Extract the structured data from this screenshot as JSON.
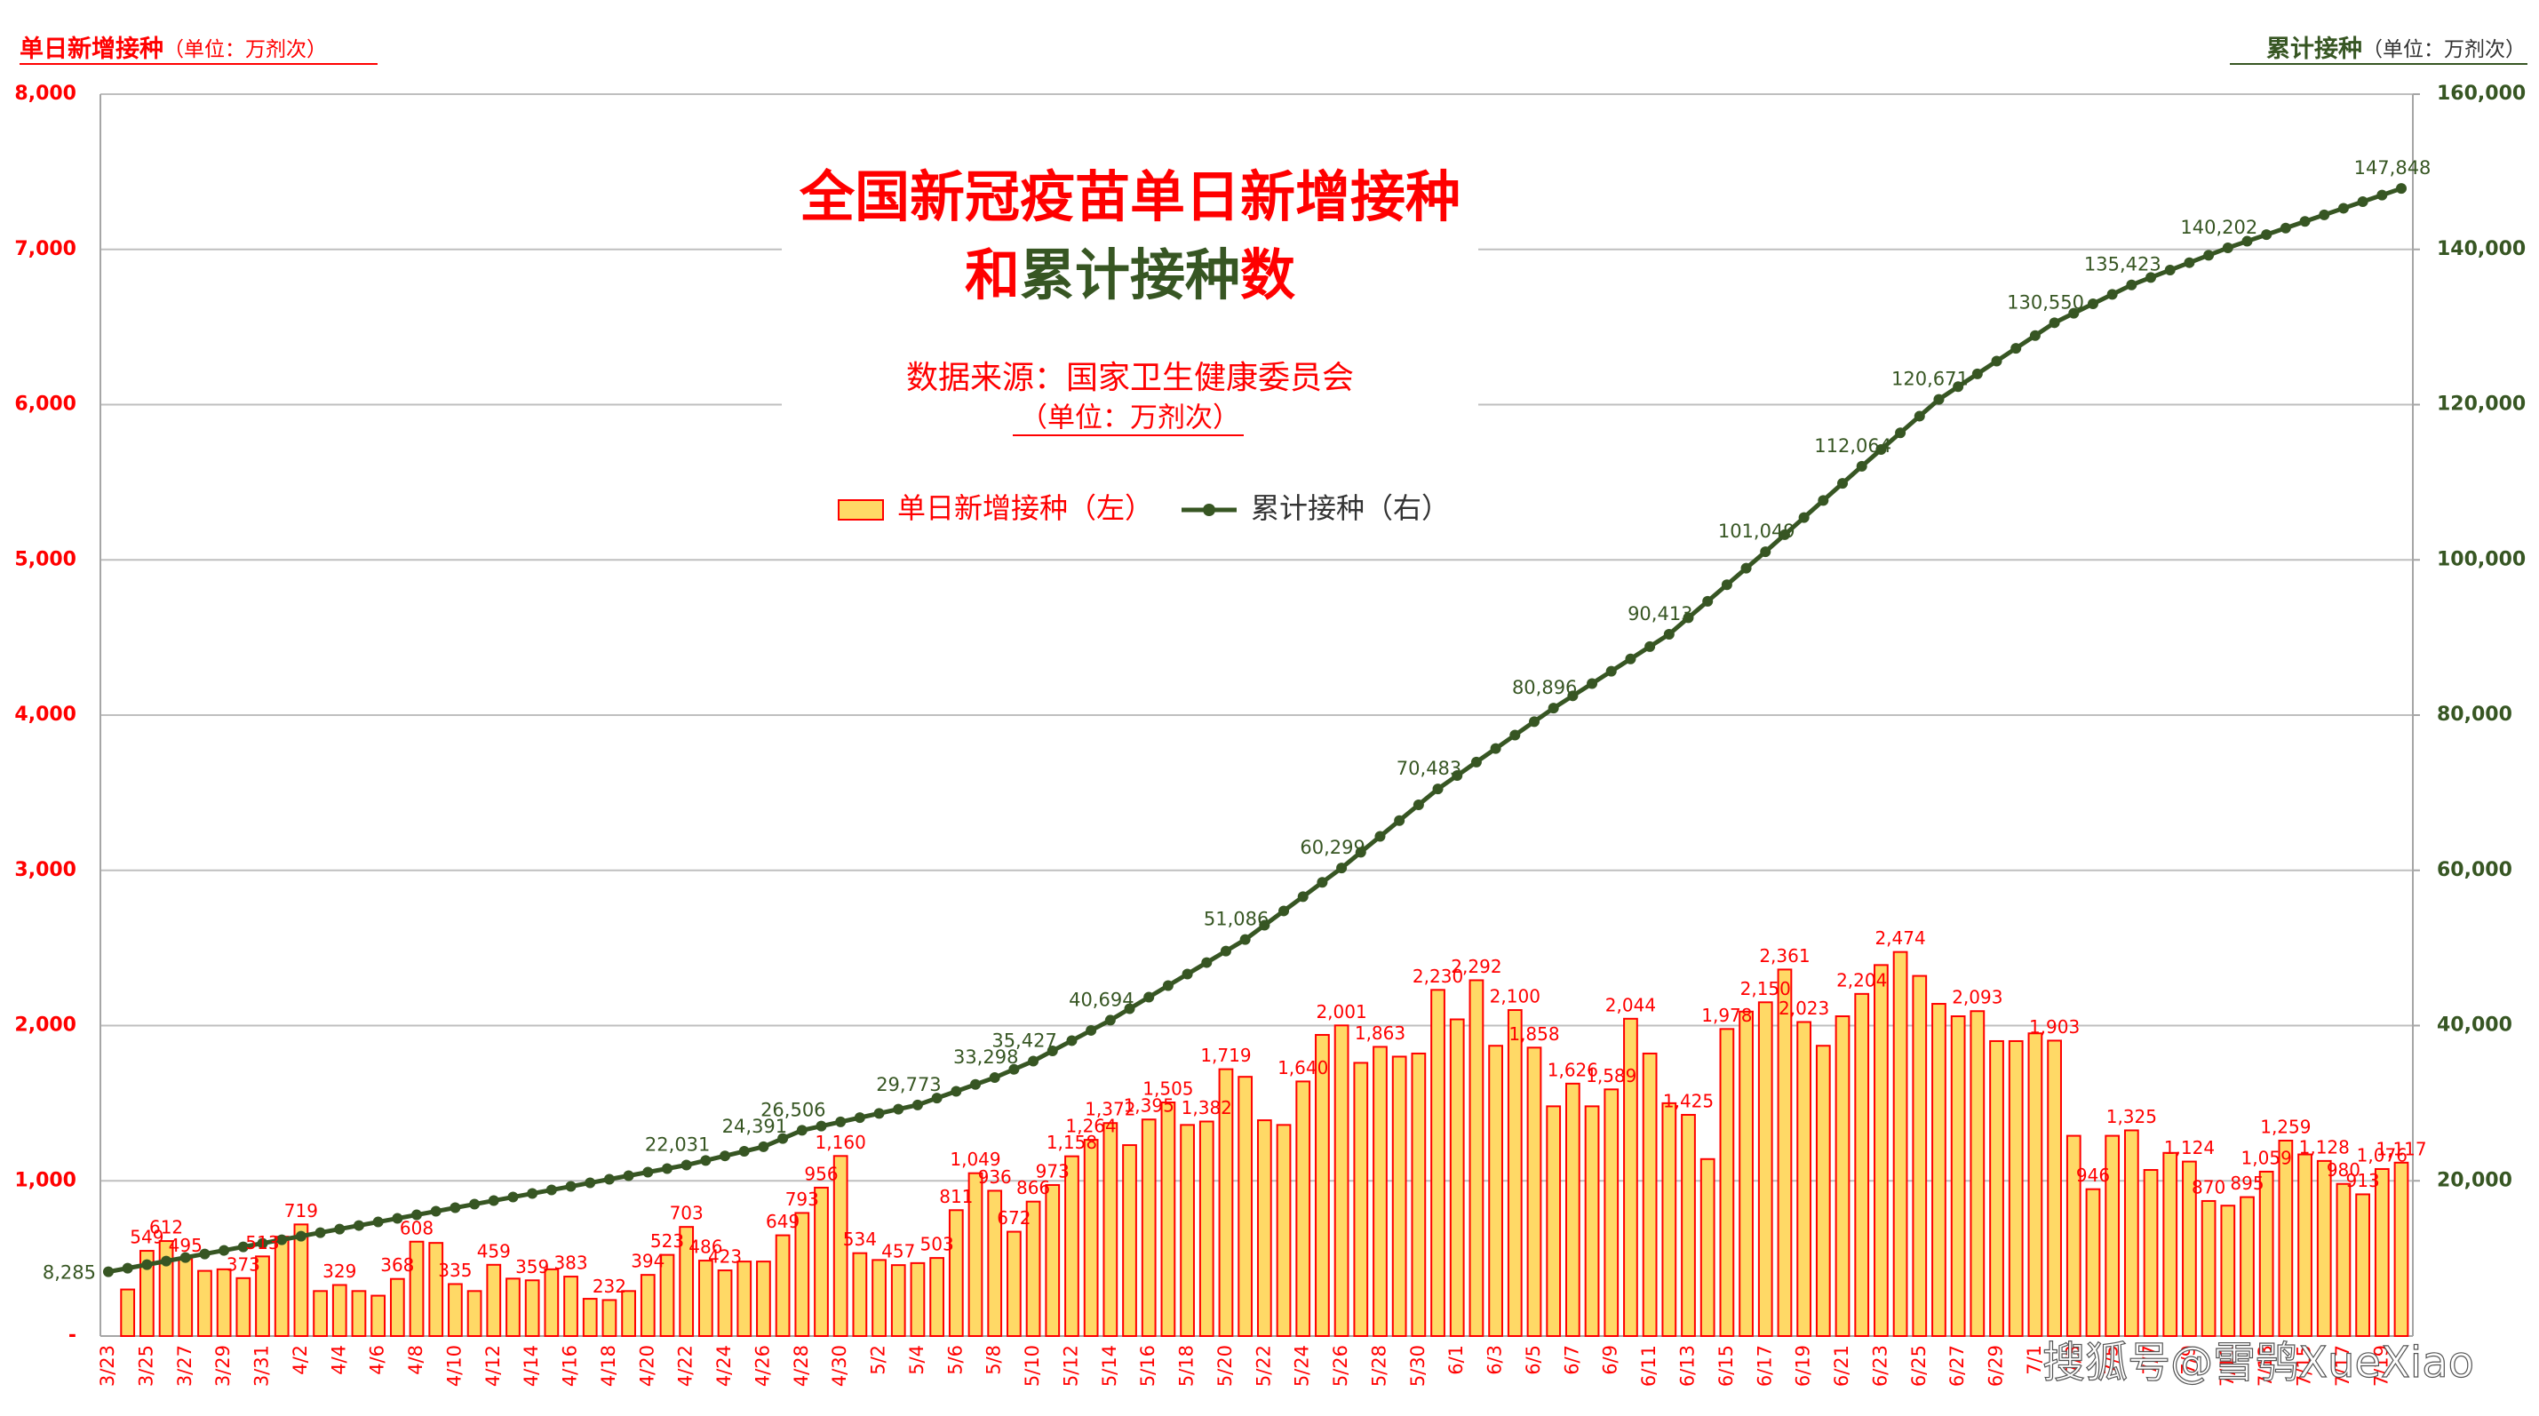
{
  "chart_data": {
    "type": "combo",
    "title": {
      "line1": {
        "text": "全国新冠疫苗单日新增接种",
        "color": "#ff0000"
      },
      "line2": [
        {
          "text": "和",
          "color": "#ff0000"
        },
        {
          "text": "累计接种",
          "color": "#375623"
        },
        {
          "text": "数",
          "color": "#ff0000"
        }
      ]
    },
    "source": "数据来源：国家卫生健康委员会",
    "unit": "（单位：万剂次）",
    "y_label": "单日新增接种",
    "y_unit": "（单位：万剂次）",
    "y2_label": "累计接种",
    "y2_unit": "（单位：万剂次）",
    "categories": [
      "3/23",
      null,
      "3/25",
      null,
      "3/27",
      null,
      "3/29",
      null,
      "3/31",
      null,
      "4/2",
      null,
      "4/4",
      null,
      "4/6",
      null,
      "4/8",
      null,
      "4/10",
      null,
      "4/12",
      null,
      "4/14",
      null,
      "4/16",
      null,
      "4/18",
      null,
      "4/20",
      null,
      "4/22",
      null,
      "4/24",
      null,
      "4/26",
      null,
      "4/28",
      null,
      "4/30",
      null,
      "5/2",
      null,
      "5/4",
      null,
      "5/6",
      null,
      "5/8",
      null,
      "5/10",
      null,
      "5/12",
      null,
      "5/14",
      null,
      "5/16",
      null,
      "5/18",
      null,
      "5/20",
      null,
      "5/22",
      null,
      "5/24",
      null,
      "5/26",
      null,
      "5/28",
      null,
      "5/30",
      null,
      "6/1",
      null,
      "6/3",
      null,
      "6/5",
      null,
      "6/7",
      null,
      "6/9",
      null,
      "6/11",
      null,
      "6/13",
      null,
      "6/15",
      null,
      "6/17",
      null,
      "6/19",
      null,
      "6/21",
      null,
      "6/23",
      null,
      "6/25",
      null,
      "6/27",
      null,
      "6/29",
      null,
      "7/1",
      null,
      "7/3",
      null,
      "7/5",
      null,
      "7/7",
      null,
      "7/9",
      null,
      "7/11",
      null,
      "7/13",
      null,
      "7/15",
      null,
      "7/17",
      null,
      "7/19",
      null
    ],
    "series": [
      {
        "name": "单日新增接种（左）",
        "type": "bar",
        "color": "#ffd966",
        "edge_color": "#ff0000",
        "label_color": "#ff0000",
        "values": [
          null,
          300,
          549,
          612,
          495,
          420,
          430,
          373,
          513,
          640,
          719,
          290,
          329,
          290,
          260,
          368,
          608,
          600,
          335,
          290,
          459,
          370,
          359,
          430,
          383,
          240,
          232,
          290,
          394,
          523,
          703,
          486,
          423,
          480,
          480,
          649,
          793,
          956,
          1160,
          534,
          490,
          457,
          470,
          503,
          811,
          1049,
          936,
          672,
          866,
          973,
          1158,
          1264,
          1372,
          1230,
          1395,
          1505,
          1360,
          1382,
          1719,
          1670,
          1390,
          1360,
          1640,
          1940,
          2001,
          1760,
          1863,
          1800,
          1820,
          2230,
          2040,
          2292,
          1870,
          2100,
          1858,
          1480,
          1626,
          1480,
          1589,
          2044,
          1820,
          1500,
          1425,
          1140,
          1978,
          2090,
          2150,
          2361,
          2023,
          1870,
          2060,
          2204,
          2390,
          2474,
          2320,
          2140,
          2060,
          2093,
          1900,
          1900,
          1950,
          1903,
          1290,
          946,
          1290,
          1325,
          1070,
          1180,
          1124,
          870,
          840,
          895,
          1059,
          1259,
          1170,
          1128,
          980,
          913,
          1076,
          1117
        ],
        "value_labels": [
          null,
          null,
          "549",
          "612",
          "495",
          null,
          null,
          "373",
          "513",
          null,
          "719",
          null,
          "329",
          null,
          null,
          "368",
          "608",
          null,
          "335",
          null,
          "459",
          null,
          "359",
          null,
          "383",
          null,
          "232",
          null,
          "394",
          "523",
          "703",
          "486",
          "423",
          null,
          null,
          "649",
          "793",
          "956",
          "1,160",
          "534",
          null,
          "457",
          null,
          "503",
          "811",
          "1,049",
          "936",
          "672",
          "866",
          "973",
          "1,158",
          "1,264",
          "1,372",
          null,
          "1,395",
          "1,505",
          null,
          "1,382",
          "1,719",
          null,
          null,
          null,
          "1,640",
          null,
          "2,001",
          null,
          "1,863",
          null,
          null,
          "2,230",
          null,
          "2,292",
          null,
          "2,100",
          "1,858",
          null,
          "1,626",
          null,
          "1,589",
          "2,044",
          null,
          null,
          "1,425",
          null,
          "1,978",
          null,
          "2,150",
          "2,361",
          "2,023",
          null,
          null,
          "2,204",
          null,
          "2,474",
          null,
          null,
          null,
          "2,093",
          null,
          null,
          null,
          "1,903",
          null,
          "946",
          null,
          "1,325",
          null,
          null,
          "1,124",
          "870",
          null,
          "895",
          "1,059",
          "1,259",
          null,
          "1,128",
          "980",
          "913",
          "1,076",
          "1,117"
        ]
      },
      {
        "name": "累计接种（右）",
        "type": "line",
        "axis": "y2",
        "color": "#375623",
        "label_color": "#375623",
        "values": [
          8285,
          8743,
          9201,
          9659,
          10118,
          10576,
          11034,
          11492,
          11950,
          12409,
          12867,
          13325,
          13783,
          14241,
          14700,
          15158,
          15616,
          16074,
          16532,
          16991,
          17449,
          17907,
          18365,
          18823,
          19282,
          19740,
          20198,
          20656,
          21114,
          21573,
          22031,
          22621,
          23211,
          23801,
          24391,
          25449,
          26506,
          27051,
          27595,
          28140,
          28684,
          29229,
          29773,
          30654,
          31535,
          32417,
          33298,
          34363,
          35427,
          36744,
          38061,
          39377,
          40694,
          42179,
          43664,
          45148,
          46633,
          48118,
          49601,
          51086,
          52929,
          54771,
          56614,
          58456,
          60299,
          62336,
          64373,
          66410,
          68446,
          70483,
          72219,
          73954,
          75690,
          77425,
          79161,
          80896,
          82482,
          84068,
          85655,
          87241,
          88827,
          90413,
          92540,
          94667,
          96795,
          98922,
          101049,
          103252,
          105455,
          107658,
          109861,
          112064,
          114216,
          116368,
          118519,
          120671,
          122318,
          123964,
          125611,
          127257,
          128904,
          130550,
          131768,
          132986,
          134205,
          135423,
          136379,
          137335,
          138290,
          139246,
          140202,
          141052,
          141901,
          142751,
          143600,
          144450,
          145300,
          146149,
          146999,
          147848
        ],
        "value_labels": [
          "8,285",
          null,
          null,
          null,
          null,
          null,
          null,
          null,
          null,
          null,
          null,
          null,
          null,
          null,
          null,
          null,
          null,
          null,
          null,
          null,
          null,
          null,
          null,
          null,
          null,
          null,
          null,
          null,
          null,
          null,
          "22,031",
          null,
          null,
          null,
          "24,391",
          null,
          "26,506",
          null,
          null,
          null,
          null,
          null,
          "29,773",
          null,
          null,
          null,
          "33,298",
          null,
          "35,427",
          null,
          null,
          null,
          "40,694",
          null,
          null,
          null,
          null,
          null,
          null,
          "51,086",
          null,
          null,
          null,
          null,
          "60,299",
          null,
          null,
          null,
          null,
          "70,483",
          null,
          null,
          null,
          null,
          null,
          "80,896",
          null,
          null,
          null,
          null,
          null,
          "90,413",
          null,
          null,
          null,
          null,
          "101,049",
          null,
          null,
          null,
          null,
          "112,064",
          null,
          null,
          null,
          "120,671",
          null,
          null,
          null,
          null,
          null,
          "130,550",
          null,
          null,
          null,
          "135,423",
          null,
          null,
          null,
          null,
          "140,202",
          null,
          null,
          null,
          null,
          null,
          null,
          null,
          null,
          "147,848"
        ]
      }
    ],
    "ylim": [
      0,
      8000
    ],
    "yticks": [
      {
        "value": 0,
        "label": "-"
      },
      {
        "value": 1000,
        "label": "1,000"
      },
      {
        "value": 2000,
        "label": "2,000"
      },
      {
        "value": 3000,
        "label": "3,000"
      },
      {
        "value": 4000,
        "label": "4,000"
      },
      {
        "value": 5000,
        "label": "5,000"
      },
      {
        "value": 6000,
        "label": "6,000"
      },
      {
        "value": 7000,
        "label": "7,000"
      },
      {
        "value": 8000,
        "label": "8,000"
      }
    ],
    "y2lim": [
      0,
      160000
    ],
    "y2ticks": [
      {
        "value": 20000,
        "label": "20,000"
      },
      {
        "value": 40000,
        "label": "40,000"
      },
      {
        "value": 60000,
        "label": "60,000"
      },
      {
        "value": 80000,
        "label": "80,000"
      },
      {
        "value": 100000,
        "label": "100,000"
      },
      {
        "value": 120000,
        "label": "120,000"
      },
      {
        "value": 140000,
        "label": "140,000"
      },
      {
        "value": 160000,
        "label": "160,000"
      }
    ],
    "grid": true,
    "watermark": "搜狐号@雪鸮XueXiao"
  }
}
